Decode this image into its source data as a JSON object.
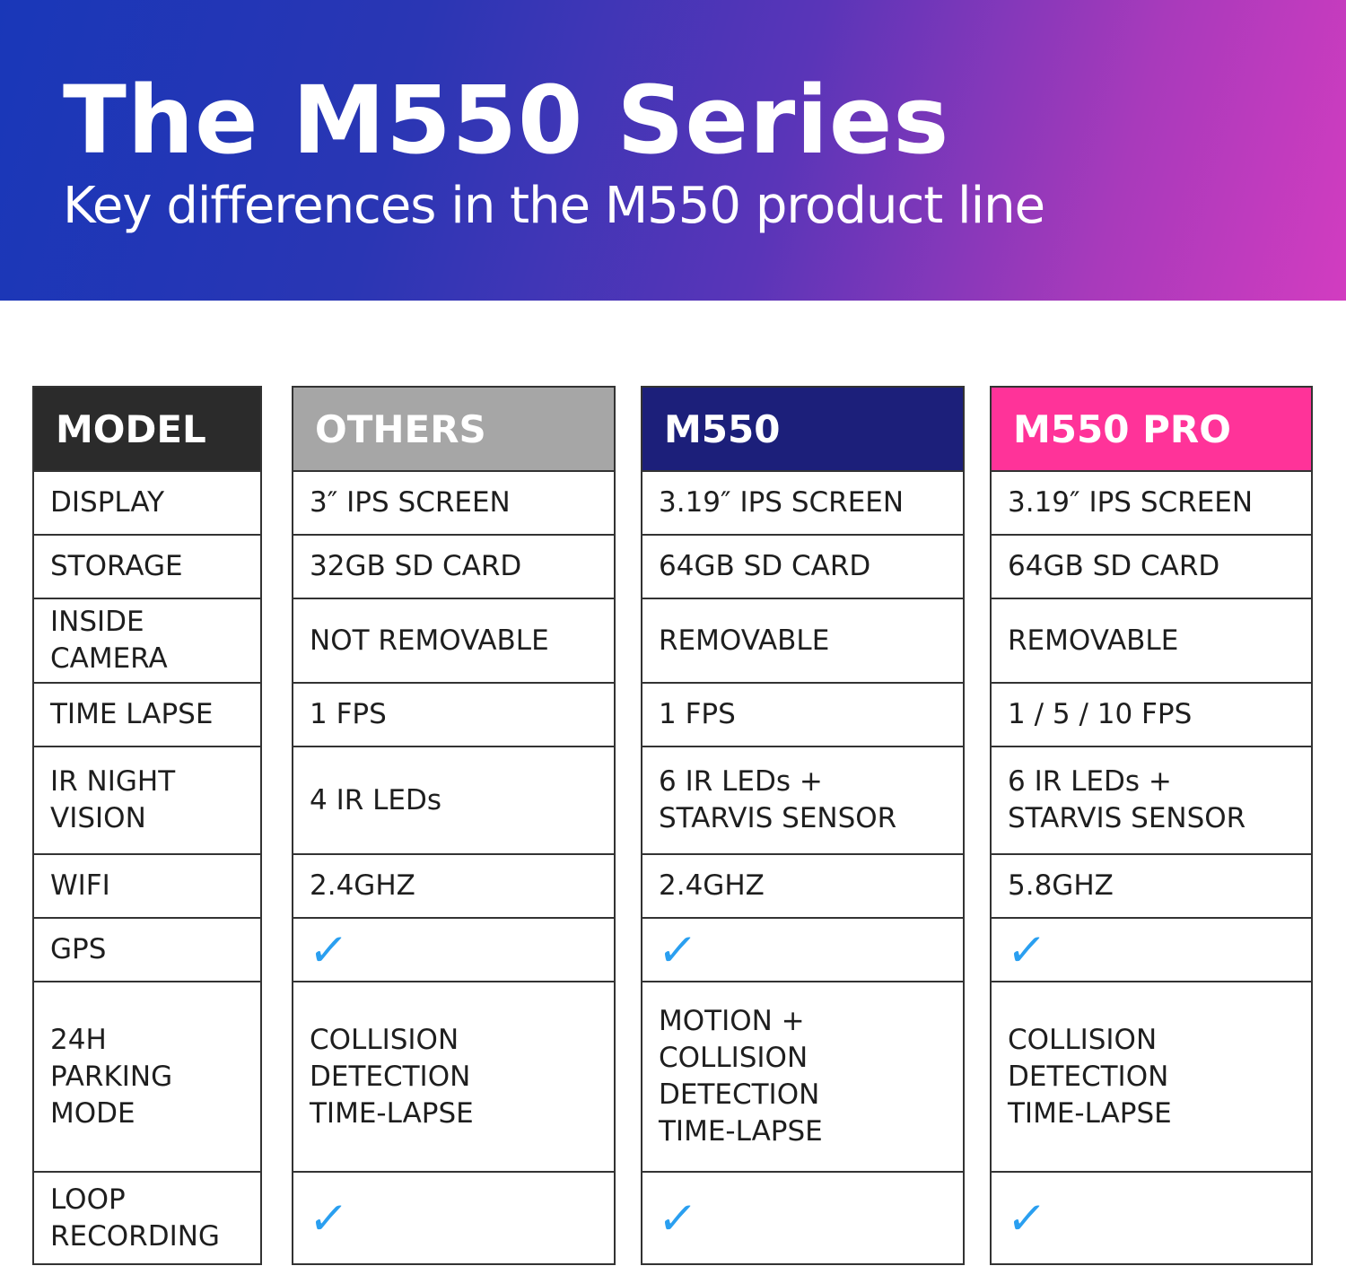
{
  "banner": {
    "title": "The M550 Series",
    "subtitle": "Key differences in the M550 product line"
  },
  "colors": {
    "model_header": "#2b2b2b",
    "others_header": "#a6a6a6",
    "m550_header": "#1c1f7a",
    "m550pro_header": "#ff3399",
    "check": "#2a9ff0"
  },
  "icons": {
    "check": "checkmark-icon"
  },
  "table": {
    "columns": [
      {
        "key": "model",
        "header": "MODEL",
        "cells": [
          "DISPLAY",
          "STORAGE",
          "INSIDE\nCAMERA",
          "TIME LAPSE",
          "IR NIGHT\nVISION",
          "WIFI",
          "GPS",
          "24H\nPARKING\nMODE",
          "LOOP\nRECORDING"
        ]
      },
      {
        "key": "others",
        "header": "OTHERS",
        "cells": [
          "3″ IPS SCREEN",
          "32GB SD CARD",
          "NOT REMOVABLE",
          "1 FPS",
          "4 IR LEDs",
          "2.4GHZ",
          "✓",
          "COLLISION\nDETECTION\nTIME-LAPSE",
          "✓"
        ]
      },
      {
        "key": "m550",
        "header": "M550",
        "cells": [
          "3.19″ IPS SCREEN",
          "64GB SD CARD",
          "REMOVABLE",
          "1 FPS",
          "6 IR LEDs +\nSTARVIS SENSOR",
          "2.4GHZ",
          "✓",
          "MOTION +\nCOLLISION\nDETECTION\nTIME-LAPSE",
          "✓"
        ]
      },
      {
        "key": "m550pro",
        "header": "M550 PRO",
        "cells": [
          "3.19″ IPS SCREEN",
          "64GB SD CARD",
          "REMOVABLE",
          "1 / 5 / 10 FPS",
          "6 IR LEDs +\nSTARVIS SENSOR",
          "5.8GHZ",
          "✓",
          "COLLISION\nDETECTION\nTIME-LAPSE",
          "✓"
        ]
      }
    ]
  }
}
